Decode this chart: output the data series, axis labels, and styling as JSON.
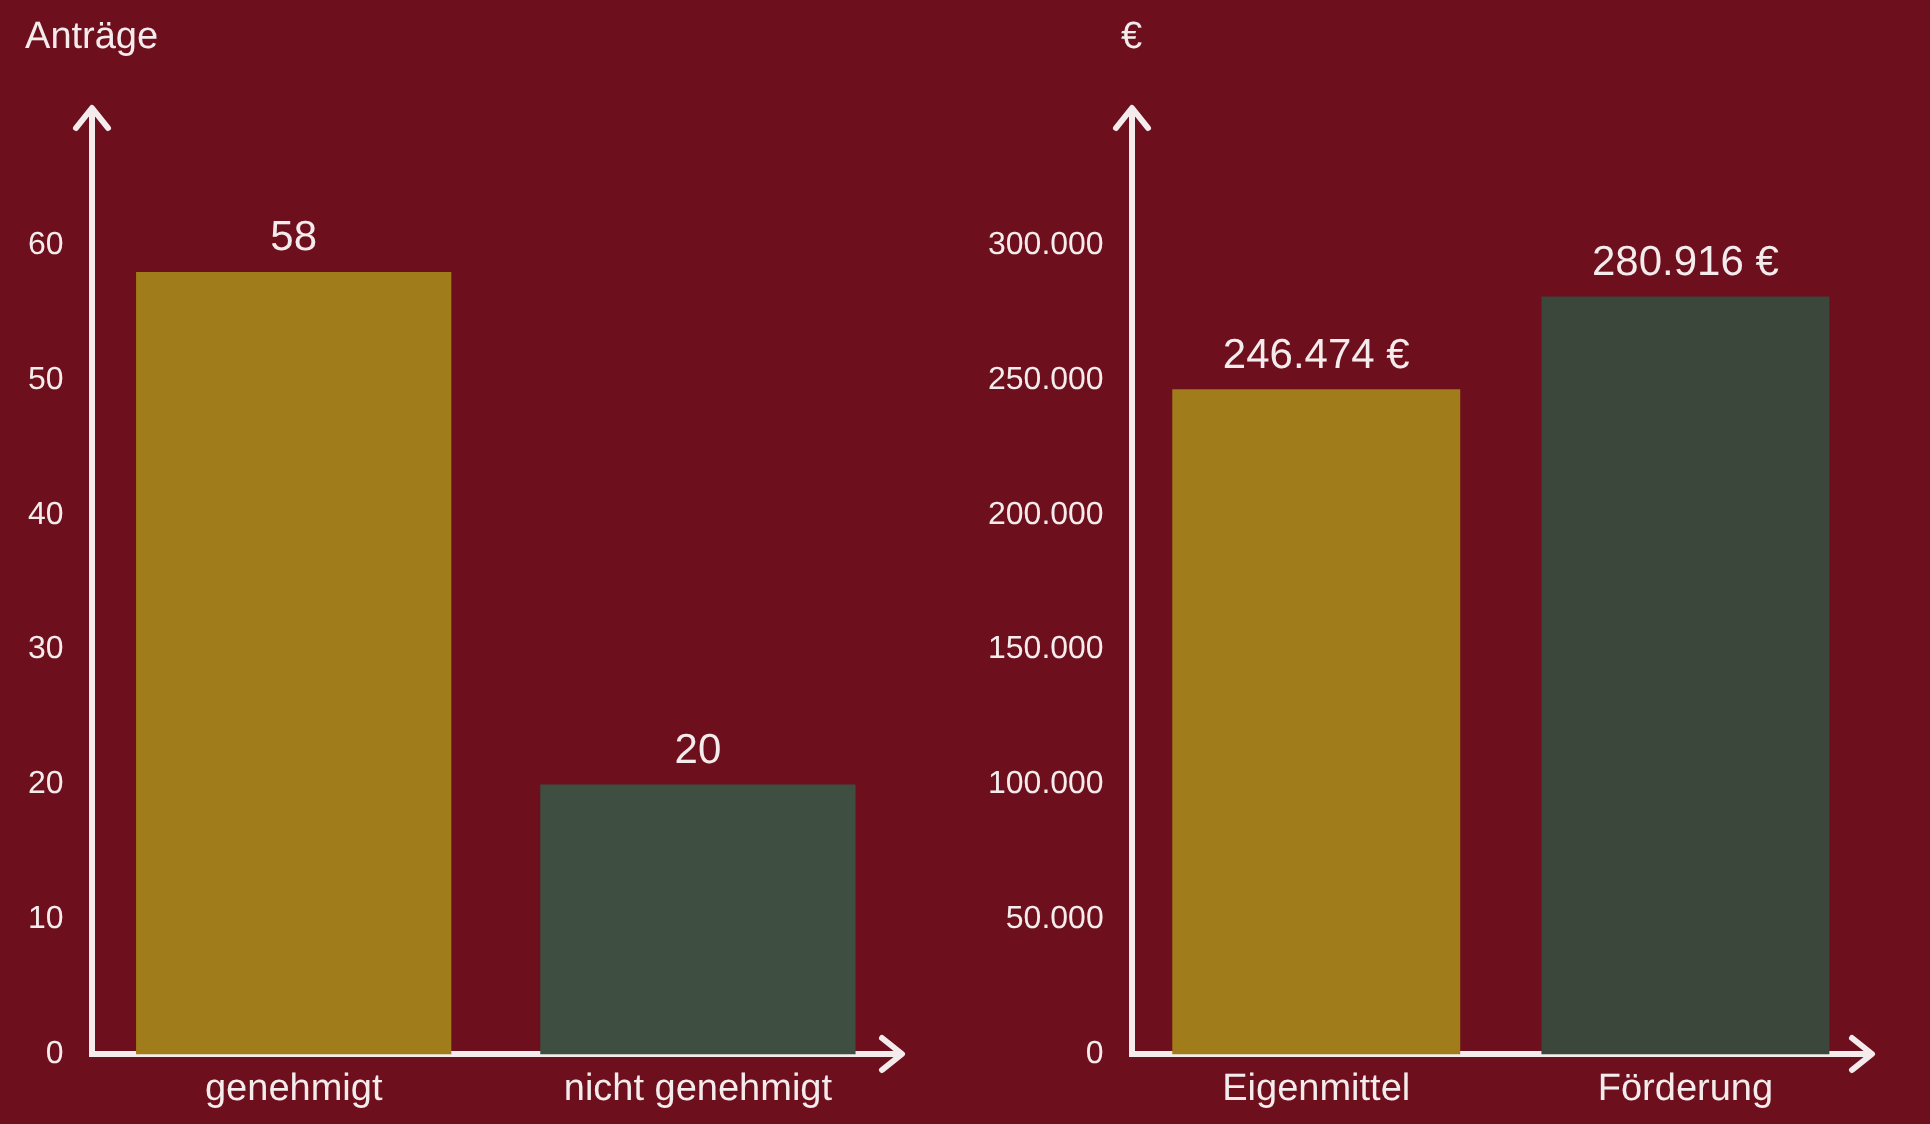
{
  "chart_data": [
    {
      "type": "bar",
      "ylabel": "Anträge",
      "categories": [
        "genehmigt",
        "nicht genehmigt"
      ],
      "values": [
        58,
        20
      ],
      "colors": [
        "#a07c1a",
        "#3e4e40"
      ],
      "ylim": [
        0,
        70
      ],
      "yticks": [
        0,
        10,
        20,
        30,
        40,
        50,
        60
      ],
      "grid": false,
      "legend": false,
      "data_labels": true
    },
    {
      "type": "bar",
      "ylabel": "€",
      "categories": [
        "Eigenmittel",
        "Förderung"
      ],
      "values": [
        246474,
        280916
      ],
      "colors": [
        "#a07c1a",
        "#3b473b"
      ],
      "ylim": [
        0,
        350000
      ],
      "yticks": [
        0,
        {
          "value": 50000,
          "label": "50.000"
        },
        {
          "value": 100000,
          "label": "100.000"
        },
        {
          "value": 150000,
          "label": "150.000"
        },
        {
          "value": 200000,
          "label": "200.000"
        },
        {
          "value": 250000,
          "label": "250.000"
        },
        {
          "value": 300000,
          "label": "300.000"
        }
      ],
      "grid": false,
      "legend": false,
      "value_labels": [
        "246.474 €",
        "280.916 €"
      ]
    }
  ]
}
